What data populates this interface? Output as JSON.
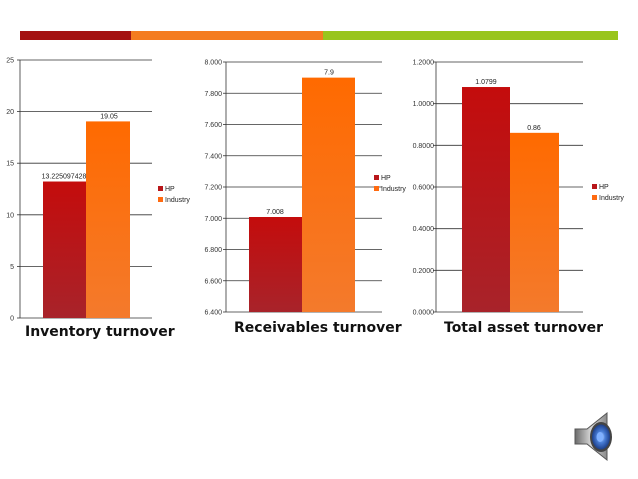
{
  "colors": {
    "bar_dark_red": "#a41212",
    "bar_orange": "#f47c20",
    "bar_green": "#99c51c",
    "hp": "#b8161a",
    "industry": "#ff6a10"
  },
  "captions": {
    "inventory": "Inventory turnover",
    "receivables": "Receivables turnover",
    "asset": "Total asset turnover"
  },
  "icons": {
    "speaker": "speaker-audio-icon"
  },
  "chart_data": [
    {
      "type": "bar",
      "title": "Inventory turnover",
      "categories": [
        ""
      ],
      "series": [
        {
          "name": "HP",
          "values": [
            13.225097428
          ],
          "label": "13.225097428"
        },
        {
          "name": "Industry",
          "values": [
            19.05
          ],
          "label": "19.05"
        }
      ],
      "ylim": [
        0,
        25
      ],
      "yticks": [
        "0",
        "5",
        "10",
        "15",
        "20",
        "25"
      ],
      "grid": true,
      "legend": "right"
    },
    {
      "type": "bar",
      "title": "Receivables turnover",
      "categories": [
        ""
      ],
      "series": [
        {
          "name": "HP",
          "values": [
            7.008
          ],
          "label": "7.008"
        },
        {
          "name": "Industry",
          "values": [
            7.9
          ],
          "label": "7.9"
        }
      ],
      "ylim": [
        6.4,
        8.0
      ],
      "yticks": [
        "6.400",
        "6.600",
        "6.800",
        "7.000",
        "7.200",
        "7.400",
        "7.600",
        "7.800",
        "8.000"
      ],
      "grid": true,
      "legend": "right"
    },
    {
      "type": "bar",
      "title": "Total asset turnover",
      "categories": [
        ""
      ],
      "series": [
        {
          "name": "HP",
          "values": [
            1.0799
          ],
          "label": "1.0799"
        },
        {
          "name": "Industry",
          "values": [
            0.86
          ],
          "label": "0.86"
        }
      ],
      "ylim": [
        0,
        1.2
      ],
      "yticks": [
        "0.0000",
        "0.2000",
        "0.4000",
        "0.6000",
        "0.8000",
        "1.0000",
        "1.2000"
      ],
      "grid": true,
      "legend": "right"
    }
  ]
}
